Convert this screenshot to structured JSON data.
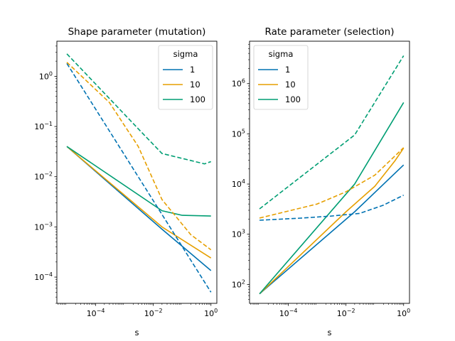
{
  "chart_data": [
    {
      "type": "line",
      "title": "Shape parameter (mutation)",
      "xlabel": "s",
      "ylabel": "",
      "xscale": "log",
      "yscale": "log",
      "xlim": [
        4.5e-06,
        1.6
      ],
      "ylim": [
        3e-05,
        5
      ],
      "x_ticks": [
        {
          "value": 0.0001,
          "base": "10",
          "exp": "−4"
        },
        {
          "value": 0.01,
          "base": "10",
          "exp": "−2"
        },
        {
          "value": 1,
          "base": "10",
          "exp": "0"
        }
      ],
      "y_ticks": [
        {
          "value": 0.0001,
          "base": "10",
          "exp": "−4"
        },
        {
          "value": 0.001,
          "base": "10",
          "exp": "−3"
        },
        {
          "value": 0.01,
          "base": "10",
          "exp": "−2"
        },
        {
          "value": 0.1,
          "base": "10",
          "exp": "−1"
        },
        {
          "value": 1,
          "base": "10",
          "exp": "0"
        }
      ],
      "legend": {
        "title": "sigma",
        "placement": "top-right"
      },
      "series": [
        {
          "name": "1",
          "color": "#0072b2",
          "style": "solid",
          "x": [
            1e-05,
            0.02,
            1
          ],
          "y": [
            0.04,
            0.0009,
            0.000135
          ]
        },
        {
          "name": "10",
          "color": "#e69f00",
          "style": "solid",
          "x": [
            1e-05,
            0.02,
            1
          ],
          "y": [
            0.04,
            0.001,
            0.00024
          ]
        },
        {
          "name": "100",
          "color": "#009e73",
          "style": "solid",
          "x": [
            1e-05,
            0.02,
            0.1,
            1
          ],
          "y": [
            0.04,
            0.0021,
            0.0017,
            0.00165
          ]
        },
        {
          "name": "",
          "color": "#0072b2",
          "style": "dashed",
          "x": [
            1e-05,
            1
          ],
          "y": [
            1.8,
            5e-05
          ]
        },
        {
          "name": "",
          "color": "#e69f00",
          "style": "dashed",
          "x": [
            1e-05,
            0.0003,
            0.003,
            0.02,
            0.2,
            1
          ],
          "y": [
            1.9,
            0.3,
            0.04,
            0.0035,
            0.0007,
            0.00035
          ]
        },
        {
          "name": "",
          "color": "#009e73",
          "style": "dashed",
          "x": [
            1e-05,
            0.003,
            0.02,
            0.2,
            0.6,
            1
          ],
          "y": [
            2.8,
            0.09,
            0.029,
            0.021,
            0.018,
            0.02
          ]
        }
      ]
    },
    {
      "type": "line",
      "title": "Rate parameter (selection)",
      "xlabel": "s",
      "ylabel": "",
      "xscale": "log",
      "yscale": "log",
      "xlim": [
        4.5e-06,
        1.6
      ],
      "ylim": [
        42,
        7000000
      ],
      "x_ticks": [
        {
          "value": 0.0001,
          "base": "10",
          "exp": "−4"
        },
        {
          "value": 0.01,
          "base": "10",
          "exp": "−2"
        },
        {
          "value": 1,
          "base": "10",
          "exp": "0"
        }
      ],
      "y_ticks": [
        {
          "value": 100,
          "base": "10",
          "exp": "2"
        },
        {
          "value": 1000,
          "base": "10",
          "exp": "3"
        },
        {
          "value": 10000,
          "base": "10",
          "exp": "4"
        },
        {
          "value": 100000,
          "base": "10",
          "exp": "5"
        },
        {
          "value": 1000000,
          "base": "10",
          "exp": "6"
        }
      ],
      "legend": {
        "title": "sigma",
        "placement": "top-left"
      },
      "series": [
        {
          "name": "1",
          "color": "#0072b2",
          "style": "solid",
          "x": [
            1e-05,
            0.02,
            1
          ],
          "y": [
            65,
            2800,
            24000
          ]
        },
        {
          "name": "10",
          "color": "#e69f00",
          "style": "solid",
          "x": [
            1e-05,
            0.01,
            0.1,
            0.5,
            1
          ],
          "y": [
            65,
            2800,
            9000,
            29000,
            52000
          ]
        },
        {
          "name": "100",
          "color": "#009e73",
          "style": "solid",
          "x": [
            1e-05,
            0.02,
            1
          ],
          "y": [
            65,
            10000,
            420000
          ]
        },
        {
          "name": "",
          "color": "#0072b2",
          "style": "dashed",
          "x": [
            1e-05,
            0.0003,
            0.003,
            0.03,
            0.2,
            1
          ],
          "y": [
            1900,
            2100,
            2300,
            2600,
            3800,
            6000
          ]
        },
        {
          "name": "",
          "color": "#e69f00",
          "style": "dashed",
          "x": [
            1e-05,
            0.001,
            0.01,
            0.1,
            1
          ],
          "y": [
            2100,
            4000,
            7000,
            15000,
            53000
          ]
        },
        {
          "name": "",
          "color": "#009e73",
          "style": "dashed",
          "x": [
            1e-05,
            0.02,
            1
          ],
          "y": [
            3200,
            95000,
            3600000
          ]
        }
      ]
    }
  ]
}
